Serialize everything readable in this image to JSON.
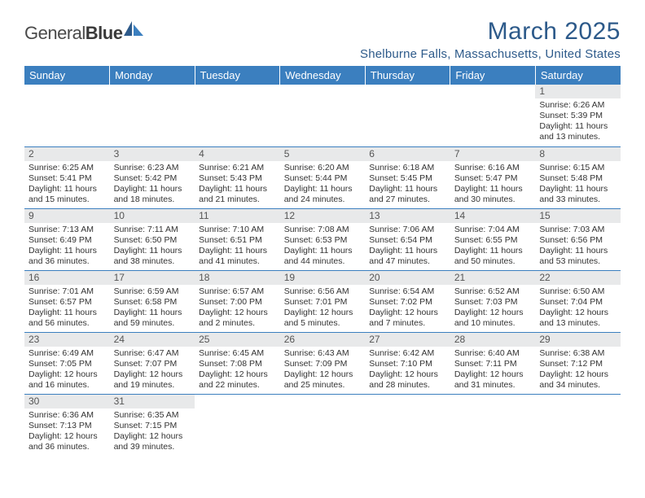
{
  "logo": {
    "part1": "General",
    "part2": "Blue"
  },
  "title": {
    "month": "March 2025",
    "location": "Shelburne Falls, Massachusetts, United States"
  },
  "title_color": "#2d5a8a",
  "header_bg": "#3b7fbf",
  "header_fg": "#ffffff",
  "daynum_bg": "#e8e9ea",
  "border_color": "#3b7fbf",
  "font_family": "Arial",
  "weekdays": [
    "Sunday",
    "Monday",
    "Tuesday",
    "Wednesday",
    "Thursday",
    "Friday",
    "Saturday"
  ],
  "weeks": [
    [
      null,
      null,
      null,
      null,
      null,
      null,
      {
        "n": "1",
        "sr": "Sunrise: 6:26 AM",
        "ss": "Sunset: 5:39 PM",
        "d1": "Daylight: 11 hours",
        "d2": "and 13 minutes."
      }
    ],
    [
      {
        "n": "2",
        "sr": "Sunrise: 6:25 AM",
        "ss": "Sunset: 5:41 PM",
        "d1": "Daylight: 11 hours",
        "d2": "and 15 minutes."
      },
      {
        "n": "3",
        "sr": "Sunrise: 6:23 AM",
        "ss": "Sunset: 5:42 PM",
        "d1": "Daylight: 11 hours",
        "d2": "and 18 minutes."
      },
      {
        "n": "4",
        "sr": "Sunrise: 6:21 AM",
        "ss": "Sunset: 5:43 PM",
        "d1": "Daylight: 11 hours",
        "d2": "and 21 minutes."
      },
      {
        "n": "5",
        "sr": "Sunrise: 6:20 AM",
        "ss": "Sunset: 5:44 PM",
        "d1": "Daylight: 11 hours",
        "d2": "and 24 minutes."
      },
      {
        "n": "6",
        "sr": "Sunrise: 6:18 AM",
        "ss": "Sunset: 5:45 PM",
        "d1": "Daylight: 11 hours",
        "d2": "and 27 minutes."
      },
      {
        "n": "7",
        "sr": "Sunrise: 6:16 AM",
        "ss": "Sunset: 5:47 PM",
        "d1": "Daylight: 11 hours",
        "d2": "and 30 minutes."
      },
      {
        "n": "8",
        "sr": "Sunrise: 6:15 AM",
        "ss": "Sunset: 5:48 PM",
        "d1": "Daylight: 11 hours",
        "d2": "and 33 minutes."
      }
    ],
    [
      {
        "n": "9",
        "sr": "Sunrise: 7:13 AM",
        "ss": "Sunset: 6:49 PM",
        "d1": "Daylight: 11 hours",
        "d2": "and 36 minutes."
      },
      {
        "n": "10",
        "sr": "Sunrise: 7:11 AM",
        "ss": "Sunset: 6:50 PM",
        "d1": "Daylight: 11 hours",
        "d2": "and 38 minutes."
      },
      {
        "n": "11",
        "sr": "Sunrise: 7:10 AM",
        "ss": "Sunset: 6:51 PM",
        "d1": "Daylight: 11 hours",
        "d2": "and 41 minutes."
      },
      {
        "n": "12",
        "sr": "Sunrise: 7:08 AM",
        "ss": "Sunset: 6:53 PM",
        "d1": "Daylight: 11 hours",
        "d2": "and 44 minutes."
      },
      {
        "n": "13",
        "sr": "Sunrise: 7:06 AM",
        "ss": "Sunset: 6:54 PM",
        "d1": "Daylight: 11 hours",
        "d2": "and 47 minutes."
      },
      {
        "n": "14",
        "sr": "Sunrise: 7:04 AM",
        "ss": "Sunset: 6:55 PM",
        "d1": "Daylight: 11 hours",
        "d2": "and 50 minutes."
      },
      {
        "n": "15",
        "sr": "Sunrise: 7:03 AM",
        "ss": "Sunset: 6:56 PM",
        "d1": "Daylight: 11 hours",
        "d2": "and 53 minutes."
      }
    ],
    [
      {
        "n": "16",
        "sr": "Sunrise: 7:01 AM",
        "ss": "Sunset: 6:57 PM",
        "d1": "Daylight: 11 hours",
        "d2": "and 56 minutes."
      },
      {
        "n": "17",
        "sr": "Sunrise: 6:59 AM",
        "ss": "Sunset: 6:58 PM",
        "d1": "Daylight: 11 hours",
        "d2": "and 59 minutes."
      },
      {
        "n": "18",
        "sr": "Sunrise: 6:57 AM",
        "ss": "Sunset: 7:00 PM",
        "d1": "Daylight: 12 hours",
        "d2": "and 2 minutes."
      },
      {
        "n": "19",
        "sr": "Sunrise: 6:56 AM",
        "ss": "Sunset: 7:01 PM",
        "d1": "Daylight: 12 hours",
        "d2": "and 5 minutes."
      },
      {
        "n": "20",
        "sr": "Sunrise: 6:54 AM",
        "ss": "Sunset: 7:02 PM",
        "d1": "Daylight: 12 hours",
        "d2": "and 7 minutes."
      },
      {
        "n": "21",
        "sr": "Sunrise: 6:52 AM",
        "ss": "Sunset: 7:03 PM",
        "d1": "Daylight: 12 hours",
        "d2": "and 10 minutes."
      },
      {
        "n": "22",
        "sr": "Sunrise: 6:50 AM",
        "ss": "Sunset: 7:04 PM",
        "d1": "Daylight: 12 hours",
        "d2": "and 13 minutes."
      }
    ],
    [
      {
        "n": "23",
        "sr": "Sunrise: 6:49 AM",
        "ss": "Sunset: 7:05 PM",
        "d1": "Daylight: 12 hours",
        "d2": "and 16 minutes."
      },
      {
        "n": "24",
        "sr": "Sunrise: 6:47 AM",
        "ss": "Sunset: 7:07 PM",
        "d1": "Daylight: 12 hours",
        "d2": "and 19 minutes."
      },
      {
        "n": "25",
        "sr": "Sunrise: 6:45 AM",
        "ss": "Sunset: 7:08 PM",
        "d1": "Daylight: 12 hours",
        "d2": "and 22 minutes."
      },
      {
        "n": "26",
        "sr": "Sunrise: 6:43 AM",
        "ss": "Sunset: 7:09 PM",
        "d1": "Daylight: 12 hours",
        "d2": "and 25 minutes."
      },
      {
        "n": "27",
        "sr": "Sunrise: 6:42 AM",
        "ss": "Sunset: 7:10 PM",
        "d1": "Daylight: 12 hours",
        "d2": "and 28 minutes."
      },
      {
        "n": "28",
        "sr": "Sunrise: 6:40 AM",
        "ss": "Sunset: 7:11 PM",
        "d1": "Daylight: 12 hours",
        "d2": "and 31 minutes."
      },
      {
        "n": "29",
        "sr": "Sunrise: 6:38 AM",
        "ss": "Sunset: 7:12 PM",
        "d1": "Daylight: 12 hours",
        "d2": "and 34 minutes."
      }
    ],
    [
      {
        "n": "30",
        "sr": "Sunrise: 6:36 AM",
        "ss": "Sunset: 7:13 PM",
        "d1": "Daylight: 12 hours",
        "d2": "and 36 minutes."
      },
      {
        "n": "31",
        "sr": "Sunrise: 6:35 AM",
        "ss": "Sunset: 7:15 PM",
        "d1": "Daylight: 12 hours",
        "d2": "and 39 minutes."
      },
      null,
      null,
      null,
      null,
      null
    ]
  ]
}
